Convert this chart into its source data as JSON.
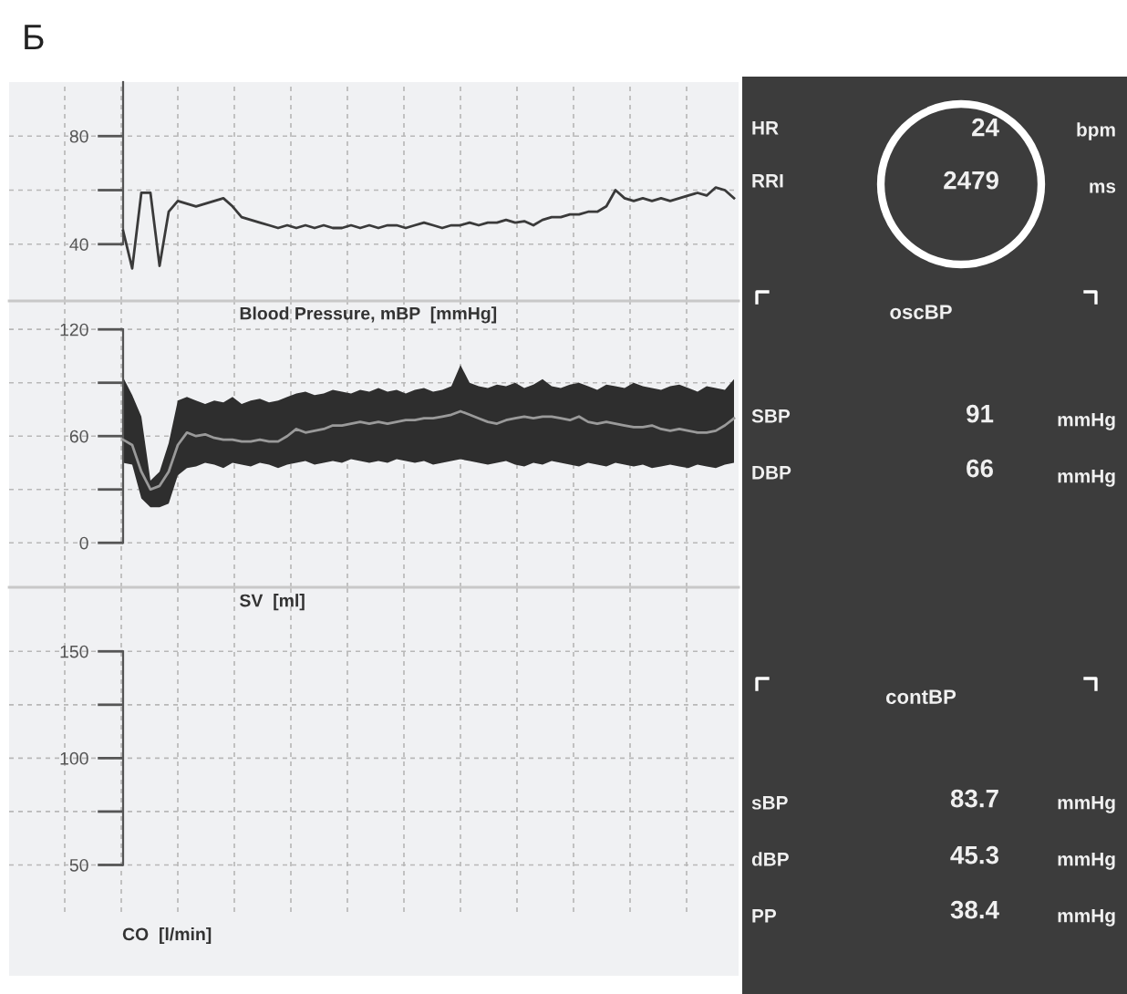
{
  "chart_data": [
    {
      "type": "line",
      "categories": [
        null,
        null,
        null,
        null,
        null,
        null,
        null,
        null,
        null,
        null,
        null,
        null,
        null,
        null,
        null,
        null,
        null,
        null,
        null,
        null,
        null,
        null,
        null,
        null,
        null,
        null,
        null,
        null,
        null,
        null,
        null,
        null,
        null,
        null,
        null,
        null,
        null,
        null,
        null,
        null,
        null,
        null,
        null,
        null,
        null,
        null,
        null,
        null,
        null,
        null,
        null,
        null,
        null,
        null,
        null,
        null,
        null,
        null,
        null,
        null,
        null,
        null,
        null,
        null,
        null,
        null,
        null,
        null,
        null,
        null,
        null,
        null,
        null,
        null,
        null,
        null,
        null,
        null,
        null,
        null
      ],
      "series": [
        {
          "color": "#3a3a3a",
          "values": [
            null,
            null,
            null,
            null,
            null,
            null,
            null,
            null,
            null,
            null,
            null,
            null,
            45,
            31,
            59,
            59,
            32,
            52,
            56,
            55,
            54,
            55,
            56,
            57,
            54,
            50,
            49,
            48,
            47,
            46,
            47,
            46,
            47,
            46,
            47,
            46,
            46,
            47,
            46,
            47,
            46,
            47,
            47,
            46,
            47,
            48,
            47,
            46,
            47,
            47,
            48,
            47,
            48,
            48,
            49,
            48,
            48.5,
            47,
            49,
            50,
            50,
            51,
            51,
            52,
            52,
            54,
            60,
            57,
            56,
            57,
            56,
            57,
            56,
            57,
            58,
            59,
            58,
            61,
            60,
            57
          ]
        }
      ],
      "ylim": [
        19,
        100
      ],
      "yticks": [
        40,
        {
          "value": 60,
          "label": null
        },
        80
      ],
      "grid": true,
      "annotations": [
        "Б"
      ]
    },
    {
      "type": "line",
      "title": "Blood Pressure, mBP  [mmHg]",
      "categories": [
        null,
        null,
        null,
        null,
        null,
        null,
        null,
        null,
        null,
        null,
        null,
        null,
        null,
        null,
        null,
        null,
        null,
        null,
        null,
        null,
        null,
        null,
        null,
        null,
        null,
        null,
        null,
        null,
        null,
        null,
        null,
        null,
        null,
        null,
        null,
        null,
        null,
        null,
        null,
        null,
        null,
        null,
        null,
        null,
        null,
        null,
        null,
        null,
        null,
        null,
        null,
        null,
        null,
        null,
        null,
        null,
        null,
        null,
        null,
        null,
        null,
        null,
        null,
        null,
        null,
        null,
        null,
        null,
        null,
        null,
        null,
        null,
        null,
        null,
        null,
        null,
        null,
        null,
        null,
        null
      ],
      "series": [
        {
          "color": "#9a9a9a",
          "values": [
            null,
            null,
            null,
            null,
            null,
            null,
            null,
            null,
            null,
            null,
            null,
            null,
            58,
            55,
            40,
            30,
            32,
            40,
            55,
            62,
            60,
            61,
            59,
            58,
            58,
            57,
            57,
            58,
            57,
            57,
            60,
            64,
            62,
            63,
            64,
            66,
            66,
            67,
            68,
            67,
            68,
            67,
            68,
            69,
            69,
            70,
            70,
            71,
            72,
            74,
            72,
            70,
            68,
            67,
            69,
            70,
            71,
            70,
            71,
            71,
            70,
            69,
            71,
            68,
            67,
            68,
            67,
            66,
            65,
            65,
            66,
            64,
            63,
            64,
            63,
            62,
            62,
            63,
            66,
            70
          ],
          "upper": [
            null,
            null,
            null,
            null,
            null,
            null,
            null,
            null,
            null,
            null,
            null,
            null,
            93,
            83,
            71,
            35,
            40,
            56,
            80,
            82,
            80,
            78,
            80,
            79,
            82,
            78,
            80,
            81,
            79,
            80,
            82,
            84,
            85,
            83,
            84,
            86,
            85,
            84,
            86,
            85,
            87,
            85,
            86,
            84,
            86,
            87,
            85,
            86,
            88,
            100,
            90,
            88,
            87,
            89,
            88,
            90,
            87,
            89,
            92,
            88,
            87,
            89,
            90,
            88,
            86,
            89,
            88,
            87,
            90,
            88,
            87,
            86,
            88,
            89,
            87,
            85,
            88,
            87,
            86,
            92
          ],
          "lower": [
            null,
            null,
            null,
            null,
            null,
            null,
            null,
            null,
            null,
            null,
            null,
            null,
            45,
            44,
            25,
            20,
            20,
            22,
            38,
            42,
            43,
            45,
            44,
            42,
            45,
            44,
            43,
            45,
            44,
            42,
            44,
            45,
            46,
            44,
            45,
            46,
            45,
            47,
            46,
            45,
            46,
            45,
            47,
            46,
            45,
            46,
            44,
            45,
            46,
            47,
            46,
            45,
            44,
            45,
            46,
            44,
            43,
            45,
            44,
            46,
            45,
            44,
            43,
            45,
            44,
            43,
            45,
            44,
            43,
            44,
            42,
            43,
            44,
            43,
            42,
            44,
            43,
            42,
            44,
            45
          ]
        }
      ],
      "ylim": [
        -25,
        136
      ],
      "yticks": [
        0,
        {
          "value": 30,
          "label": null
        },
        60,
        {
          "value": 90,
          "label": null
        },
        120
      ],
      "grid": true
    },
    {
      "type": "line",
      "title": "SV  [ml]",
      "categories": [
        null,
        null,
        null,
        null,
        null,
        null,
        null,
        null,
        null,
        null,
        null,
        null,
        null,
        null,
        null,
        null,
        null,
        null,
        null,
        null,
        null,
        null,
        null,
        null,
        null,
        null,
        null,
        null,
        null,
        null,
        null,
        null,
        null,
        null,
        null,
        null,
        null,
        null,
        null,
        null,
        null,
        null,
        null,
        null,
        null,
        null,
        null,
        null,
        null,
        null,
        null,
        null,
        null,
        null,
        null,
        null,
        null,
        null,
        null,
        null,
        null,
        null,
        null,
        null,
        null,
        null,
        null,
        null,
        null,
        null,
        null,
        null,
        null,
        null,
        null,
        null,
        null,
        null,
        null,
        null
      ],
      "series": [
        {
          "color": "#3a3a3a",
          "values": [
            null,
            null,
            null,
            null,
            null,
            null,
            null,
            null,
            null,
            null,
            null,
            null,
            null,
            null,
            null,
            null,
            null,
            null,
            null,
            null,
            null,
            null,
            null,
            null,
            null,
            null,
            null,
            null,
            null,
            null,
            null,
            null,
            null,
            null,
            null,
            null,
            null,
            null,
            null,
            null,
            null,
            null,
            null,
            null,
            null,
            null,
            null,
            null,
            null,
            null,
            null,
            null,
            null,
            null,
            null,
            null,
            null,
            null,
            null,
            null,
            null,
            null,
            null,
            null,
            null,
            null,
            null,
            null,
            null,
            null,
            null,
            null,
            null,
            null,
            null,
            null,
            null,
            null,
            null,
            null
          ]
        }
      ],
      "ylim": [
        28,
        180
      ],
      "yticks": [
        50,
        {
          "value": 75,
          "label": null
        },
        100,
        {
          "value": 125,
          "label": null
        },
        150
      ],
      "grid": true,
      "annotations": [
        "CO  [l/min]"
      ]
    },
    {
      "type": "other",
      "annotations": [
        "HR",
        "24",
        "bpm",
        "RRI",
        "2479",
        "ms",
        "oscBP",
        "SBP",
        "91",
        "mmHg",
        "DBP",
        "66",
        "mmHg",
        "contBP",
        "sBP",
        "83.7",
        "mmHg",
        "dBP",
        "45.3",
        "mmHg",
        "PP",
        "38.4",
        "mmHg"
      ]
    }
  ]
}
